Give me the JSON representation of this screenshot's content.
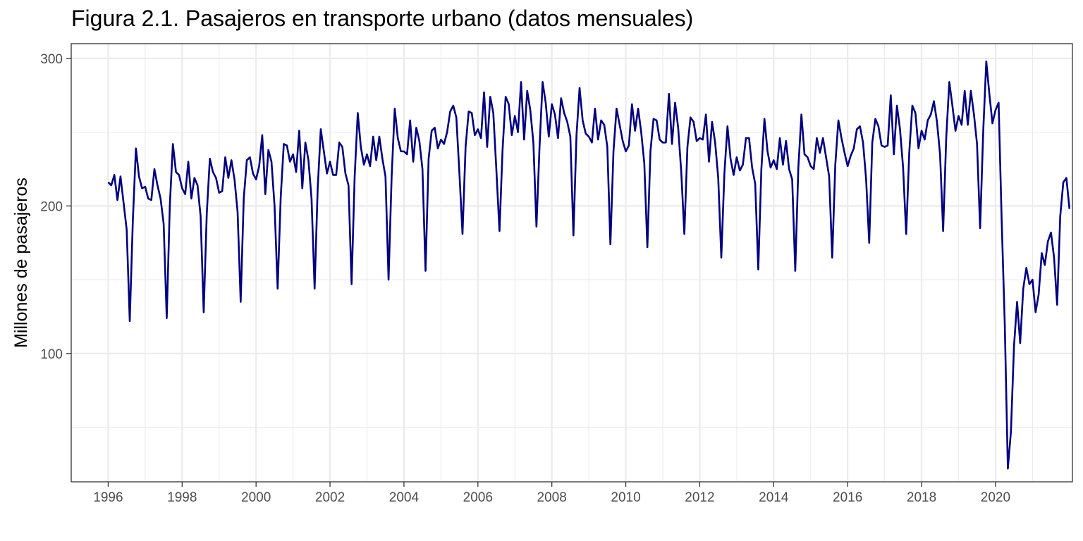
{
  "chart_data": {
    "type": "line",
    "title": "Figura 2.1. Pasajeros en transporte urbano (datos mensuales)",
    "xlabel": "",
    "ylabel": "Millones de pasajeros",
    "x_start": "1996-01",
    "x_end": "2021-12",
    "x_frequency": "monthly",
    "x_tick_labels": [
      "1996",
      "1998",
      "2000",
      "2002",
      "2004",
      "2006",
      "2008",
      "2010",
      "2012",
      "2014",
      "2016",
      "2018",
      "2020"
    ],
    "y_tick_labels": [
      "100",
      "200",
      "300"
    ],
    "xlim": [
      1995.0,
      2022.08
    ],
    "ylim": [
      13,
      310
    ],
    "grid": true,
    "legend": "none",
    "series": [
      {
        "color": "#000080",
        "values": [
          216,
          214,
          221,
          204,
          220,
          202,
          184,
          122,
          190,
          239,
          220,
          212,
          213,
          205,
          204,
          225,
          214,
          205,
          188,
          124,
          200,
          242,
          223,
          221,
          212,
          208,
          230,
          205,
          219,
          214,
          193,
          128,
          195,
          232,
          223,
          219,
          209,
          210,
          233,
          219,
          231,
          218,
          196,
          135,
          205,
          231,
          233,
          222,
          218,
          227,
          248,
          208,
          238,
          230,
          200,
          144,
          206,
          242,
          241,
          230,
          235,
          223,
          251,
          212,
          243,
          231,
          205,
          144,
          212,
          252,
          237,
          222,
          230,
          221,
          221,
          243,
          240,
          222,
          214,
          147,
          220,
          263,
          240,
          228,
          235,
          227,
          247,
          231,
          247,
          232,
          220,
          150,
          220,
          266,
          246,
          237,
          237,
          235,
          258,
          230,
          253,
          244,
          225,
          156,
          232,
          251,
          253,
          239,
          245,
          242,
          250,
          264,
          268,
          260,
          222,
          181,
          240,
          264,
          263,
          248,
          252,
          246,
          277,
          240,
          274,
          263,
          224,
          183,
          238,
          274,
          269,
          248,
          261,
          250,
          284,
          245,
          278,
          265,
          243,
          186,
          240,
          284,
          270,
          247,
          269,
          262,
          246,
          273,
          263,
          257,
          247,
          180,
          248,
          280,
          258,
          249,
          247,
          243,
          266,
          245,
          258,
          255,
          240,
          174,
          237,
          266,
          255,
          244,
          237,
          241,
          269,
          251,
          266,
          250,
          229,
          172,
          237,
          259,
          258,
          245,
          243,
          243,
          276,
          242,
          270,
          253,
          223,
          181,
          240,
          260,
          257,
          244,
          246,
          245,
          262,
          230,
          257,
          243,
          219,
          165,
          222,
          254,
          232,
          221,
          233,
          224,
          228,
          246,
          246,
          226,
          215,
          157,
          225,
          259,
          237,
          226,
          231,
          225,
          246,
          228,
          244,
          225,
          218,
          156,
          226,
          262,
          235,
          233,
          227,
          225,
          246,
          236,
          246,
          233,
          220,
          165,
          228,
          258,
          246,
          236,
          227,
          234,
          239,
          252,
          254,
          243,
          218,
          175,
          243,
          259,
          254,
          241,
          240,
          241,
          275,
          235,
          268,
          252,
          226,
          181,
          236,
          268,
          263,
          239,
          251,
          245,
          258,
          262,
          271,
          257,
          235,
          183,
          246,
          284,
          268,
          251,
          261,
          255,
          278,
          255,
          278,
          262,
          242,
          185,
          250,
          298,
          276,
          256,
          265,
          270,
          190,
          120,
          22,
          47,
          105,
          135,
          107,
          144,
          158,
          147,
          150,
          128,
          140,
          168,
          160,
          176,
          182,
          165,
          133,
          193,
          216,
          219,
          198
        ]
      }
    ]
  }
}
